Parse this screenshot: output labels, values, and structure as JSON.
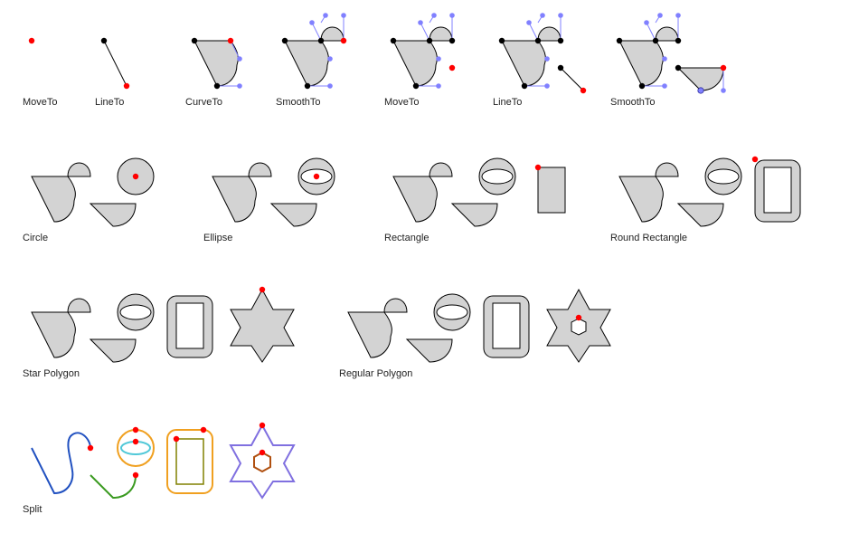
{
  "colors": {
    "fill": "#d3d3d3",
    "stroke": "#000000",
    "point_current": "#ff0000",
    "point_anchor": "#000000",
    "point_control": "#8080ff",
    "control_line": "#8080ff",
    "split_blue": "#2050c0",
    "split_green": "#3a9a20",
    "split_orange": "#f0a020",
    "split_cyan": "#50c8d8",
    "split_olive": "#808000",
    "split_purple": "#8070e0",
    "split_brown": "#b05010"
  },
  "labels": {
    "moveto_1": "MoveTo",
    "lineto_1": "LineTo",
    "curveto": "CurveTo",
    "smoothto_1": "SmoothTo",
    "moveto_2": "MoveTo",
    "lineto_2": "LineTo",
    "smoothto_2": "SmoothTo",
    "circle": "Circle",
    "ellipse": "Ellipse",
    "rectangle": "Rectangle",
    "round_rectangle": "Round Rectangle",
    "star_polygon": "Star Polygon",
    "regular_polygon": "Regular Polygon",
    "split": "Split"
  }
}
